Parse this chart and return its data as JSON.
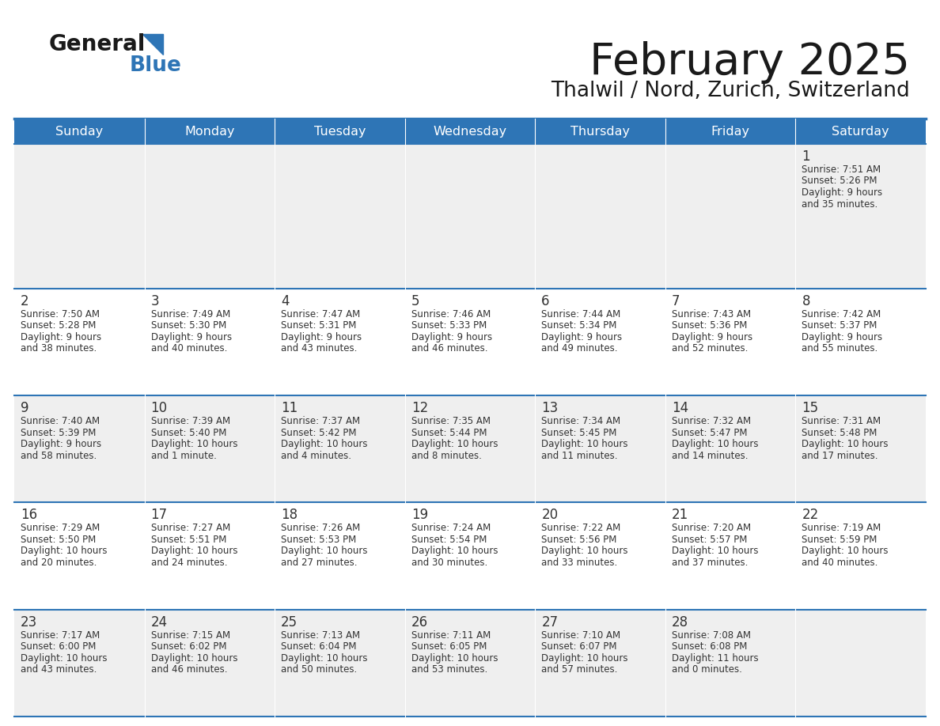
{
  "title": "February 2025",
  "subtitle": "Thalwil / Nord, Zurich, Switzerland",
  "header_bg": "#2E75B6",
  "header_text_color": "#FFFFFF",
  "cell_bg_white": "#FFFFFF",
  "cell_bg_gray": "#EFEFEF",
  "border_color": "#2E75B6",
  "day_number_color": "#333333",
  "cell_text_color": "#333333",
  "days_of_week": [
    "Sunday",
    "Monday",
    "Tuesday",
    "Wednesday",
    "Thursday",
    "Friday",
    "Saturday"
  ],
  "logo_general_color": "#1a1a1a",
  "logo_blue_color": "#2E75B6",
  "calendar_data": [
    [
      null,
      null,
      null,
      null,
      null,
      null,
      {
        "day": "1",
        "sunrise": "7:51 AM",
        "sunset": "5:26 PM",
        "daylight": "9 hours\nand 35 minutes."
      }
    ],
    [
      {
        "day": "2",
        "sunrise": "7:50 AM",
        "sunset": "5:28 PM",
        "daylight": "9 hours\nand 38 minutes."
      },
      {
        "day": "3",
        "sunrise": "7:49 AM",
        "sunset": "5:30 PM",
        "daylight": "9 hours\nand 40 minutes."
      },
      {
        "day": "4",
        "sunrise": "7:47 AM",
        "sunset": "5:31 PM",
        "daylight": "9 hours\nand 43 minutes."
      },
      {
        "day": "5",
        "sunrise": "7:46 AM",
        "sunset": "5:33 PM",
        "daylight": "9 hours\nand 46 minutes."
      },
      {
        "day": "6",
        "sunrise": "7:44 AM",
        "sunset": "5:34 PM",
        "daylight": "9 hours\nand 49 minutes."
      },
      {
        "day": "7",
        "sunrise": "7:43 AM",
        "sunset": "5:36 PM",
        "daylight": "9 hours\nand 52 minutes."
      },
      {
        "day": "8",
        "sunrise": "7:42 AM",
        "sunset": "5:37 PM",
        "daylight": "9 hours\nand 55 minutes."
      }
    ],
    [
      {
        "day": "9",
        "sunrise": "7:40 AM",
        "sunset": "5:39 PM",
        "daylight": "9 hours\nand 58 minutes."
      },
      {
        "day": "10",
        "sunrise": "7:39 AM",
        "sunset": "5:40 PM",
        "daylight": "10 hours\nand 1 minute."
      },
      {
        "day": "11",
        "sunrise": "7:37 AM",
        "sunset": "5:42 PM",
        "daylight": "10 hours\nand 4 minutes."
      },
      {
        "day": "12",
        "sunrise": "7:35 AM",
        "sunset": "5:44 PM",
        "daylight": "10 hours\nand 8 minutes."
      },
      {
        "day": "13",
        "sunrise": "7:34 AM",
        "sunset": "5:45 PM",
        "daylight": "10 hours\nand 11 minutes."
      },
      {
        "day": "14",
        "sunrise": "7:32 AM",
        "sunset": "5:47 PM",
        "daylight": "10 hours\nand 14 minutes."
      },
      {
        "day": "15",
        "sunrise": "7:31 AM",
        "sunset": "5:48 PM",
        "daylight": "10 hours\nand 17 minutes."
      }
    ],
    [
      {
        "day": "16",
        "sunrise": "7:29 AM",
        "sunset": "5:50 PM",
        "daylight": "10 hours\nand 20 minutes."
      },
      {
        "day": "17",
        "sunrise": "7:27 AM",
        "sunset": "5:51 PM",
        "daylight": "10 hours\nand 24 minutes."
      },
      {
        "day": "18",
        "sunrise": "7:26 AM",
        "sunset": "5:53 PM",
        "daylight": "10 hours\nand 27 minutes."
      },
      {
        "day": "19",
        "sunrise": "7:24 AM",
        "sunset": "5:54 PM",
        "daylight": "10 hours\nand 30 minutes."
      },
      {
        "day": "20",
        "sunrise": "7:22 AM",
        "sunset": "5:56 PM",
        "daylight": "10 hours\nand 33 minutes."
      },
      {
        "day": "21",
        "sunrise": "7:20 AM",
        "sunset": "5:57 PM",
        "daylight": "10 hours\nand 37 minutes."
      },
      {
        "day": "22",
        "sunrise": "7:19 AM",
        "sunset": "5:59 PM",
        "daylight": "10 hours\nand 40 minutes."
      }
    ],
    [
      {
        "day": "23",
        "sunrise": "7:17 AM",
        "sunset": "6:00 PM",
        "daylight": "10 hours\nand 43 minutes."
      },
      {
        "day": "24",
        "sunrise": "7:15 AM",
        "sunset": "6:02 PM",
        "daylight": "10 hours\nand 46 minutes."
      },
      {
        "day": "25",
        "sunrise": "7:13 AM",
        "sunset": "6:04 PM",
        "daylight": "10 hours\nand 50 minutes."
      },
      {
        "day": "26",
        "sunrise": "7:11 AM",
        "sunset": "6:05 PM",
        "daylight": "10 hours\nand 53 minutes."
      },
      {
        "day": "27",
        "sunrise": "7:10 AM",
        "sunset": "6:07 PM",
        "daylight": "10 hours\nand 57 minutes."
      },
      {
        "day": "28",
        "sunrise": "7:08 AM",
        "sunset": "6:08 PM",
        "daylight": "11 hours\nand 0 minutes."
      },
      null
    ]
  ]
}
